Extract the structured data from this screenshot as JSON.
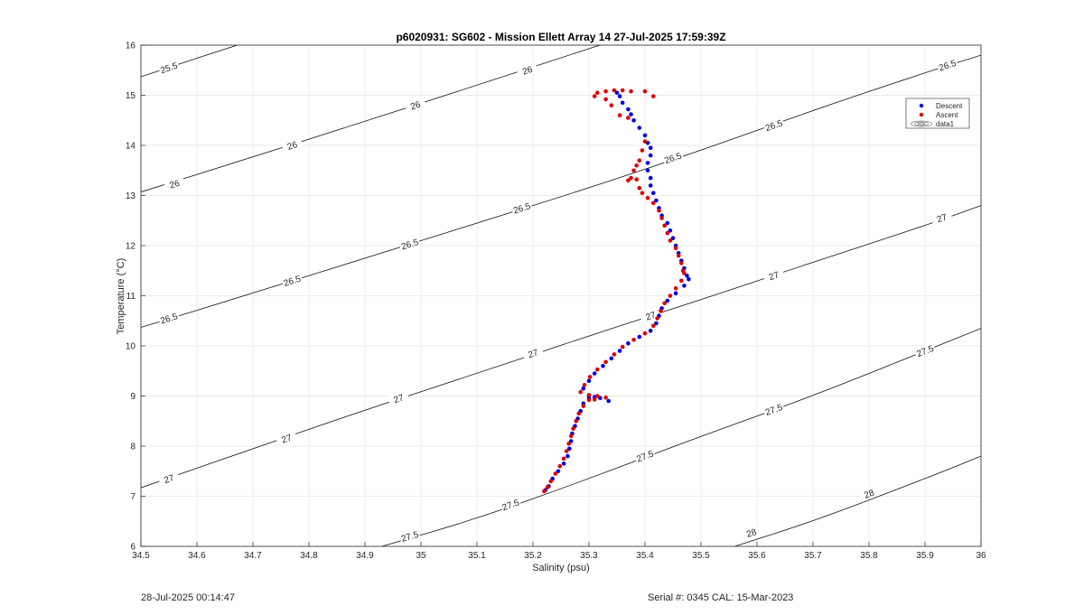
{
  "chart_data": {
    "type": "scatter",
    "title": "p6020931: SG602 - Mission Ellett Array 14 27-Jul-2025 17:59:39Z",
    "xlabel": "Salinity (psu)",
    "ylabel": "Temperature (°C)",
    "xlim": [
      34.5,
      36
    ],
    "ylim": [
      6,
      16
    ],
    "x_ticks": [
      "34.5",
      "34.6",
      "34.7",
      "34.8",
      "34.9",
      "35",
      "35.1",
      "35.2",
      "35.3",
      "35.4",
      "35.5",
      "35.6",
      "35.7",
      "35.8",
      "35.9",
      "36"
    ],
    "y_ticks": [
      "6",
      "7",
      "8",
      "9",
      "10",
      "11",
      "12",
      "13",
      "14",
      "15",
      "16"
    ],
    "grid": true,
    "legend_placement": "top-right",
    "legend": [
      "Descent",
      "Ascent",
      "data1"
    ],
    "contours": [
      {
        "label": "25.5",
        "points": [
          [
            34.5,
            15.37
          ],
          [
            34.6,
            15.74
          ],
          [
            34.7,
            16.1
          ]
        ]
      },
      {
        "label": "26",
        "points": [
          [
            34.5,
            13.07
          ],
          [
            34.7,
            13.77
          ],
          [
            34.9,
            14.48
          ],
          [
            35.1,
            15.2
          ],
          [
            35.3,
            15.93
          ],
          [
            35.32,
            16.0
          ]
        ]
      },
      {
        "label": "26.5",
        "points": [
          [
            34.5,
            10.37
          ],
          [
            34.7,
            11.05
          ],
          [
            34.9,
            11.75
          ],
          [
            35.1,
            12.45
          ],
          [
            35.3,
            13.15
          ],
          [
            35.5,
            13.9
          ],
          [
            35.7,
            14.7
          ],
          [
            35.9,
            15.45
          ],
          [
            36,
            15.8
          ]
        ]
      },
      {
        "label": "27",
        "points": [
          [
            34.5,
            7.17
          ],
          [
            34.7,
            7.95
          ],
          [
            34.9,
            8.72
          ],
          [
            35.1,
            9.45
          ],
          [
            35.3,
            10.2
          ],
          [
            35.5,
            10.92
          ],
          [
            35.7,
            11.67
          ],
          [
            35.9,
            12.4
          ],
          [
            36,
            12.8
          ]
        ]
      },
      {
        "label": "27.5",
        "points": [
          [
            34.93,
            6.0
          ],
          [
            35.1,
            6.55
          ],
          [
            35.3,
            7.35
          ],
          [
            35.5,
            8.2
          ],
          [
            35.7,
            9.0
          ],
          [
            35.9,
            9.9
          ],
          [
            36,
            10.35
          ]
        ]
      },
      {
        "label": "28",
        "points": [
          [
            35.56,
            6.0
          ],
          [
            35.7,
            6.5
          ],
          [
            35.9,
            7.35
          ],
          [
            36,
            7.8
          ]
        ]
      }
    ],
    "contour_labels": [
      {
        "label": "25.5",
        "x": 34.55,
        "y": 15.55
      },
      {
        "label": "26",
        "x": 35.19,
        "y": 15.5
      },
      {
        "label": "26",
        "x": 34.99,
        "y": 14.8
      },
      {
        "label": "26",
        "x": 34.77,
        "y": 14.0
      },
      {
        "label": "26",
        "x": 34.56,
        "y": 13.23
      },
      {
        "label": "26.5",
        "x": 35.94,
        "y": 15.6
      },
      {
        "label": "26.5",
        "x": 35.63,
        "y": 14.4
      },
      {
        "label": "26.5",
        "x": 35.45,
        "y": 13.75
      },
      {
        "label": "26.5",
        "x": 35.18,
        "y": 12.75
      },
      {
        "label": "26.5",
        "x": 34.98,
        "y": 12.03
      },
      {
        "label": "26.5",
        "x": 34.77,
        "y": 11.3
      },
      {
        "label": "26.5",
        "x": 34.55,
        "y": 10.55
      },
      {
        "label": "27",
        "x": 35.93,
        "y": 12.55
      },
      {
        "label": "27",
        "x": 35.63,
        "y": 11.4
      },
      {
        "label": "27",
        "x": 35.41,
        "y": 10.6
      },
      {
        "label": "27",
        "x": 35.2,
        "y": 9.85
      },
      {
        "label": "27",
        "x": 34.96,
        "y": 8.95
      },
      {
        "label": "27",
        "x": 34.76,
        "y": 8.15
      },
      {
        "label": "27",
        "x": 34.55,
        "y": 7.35
      },
      {
        "label": "27.5",
        "x": 35.9,
        "y": 9.9
      },
      {
        "label": "27.5",
        "x": 35.63,
        "y": 8.73
      },
      {
        "label": "27.5",
        "x": 35.4,
        "y": 7.8
      },
      {
        "label": "27.5",
        "x": 35.16,
        "y": 6.83
      },
      {
        "label": "27.5",
        "x": 34.98,
        "y": 6.2
      },
      {
        "label": "28",
        "x": 35.8,
        "y": 7.05
      },
      {
        "label": "28",
        "x": 35.59,
        "y": 6.27
      }
    ],
    "series": [
      {
        "name": "Descent",
        "color": "#0000dd",
        "points": [
          [
            35.35,
            15.05
          ],
          [
            35.355,
            14.98
          ],
          [
            35.36,
            14.85
          ],
          [
            35.37,
            14.72
          ],
          [
            35.375,
            14.62
          ],
          [
            35.38,
            14.5
          ],
          [
            35.39,
            14.35
          ],
          [
            35.4,
            14.2
          ],
          [
            35.405,
            14.05
          ],
          [
            35.41,
            13.95
          ],
          [
            35.41,
            13.8
          ],
          [
            35.405,
            13.65
          ],
          [
            35.405,
            13.5
          ],
          [
            35.41,
            13.35
          ],
          [
            35.41,
            13.2
          ],
          [
            35.415,
            13.05
          ],
          [
            35.42,
            12.9
          ],
          [
            35.425,
            12.75
          ],
          [
            35.43,
            12.6
          ],
          [
            35.44,
            12.45
          ],
          [
            35.445,
            12.3
          ],
          [
            35.45,
            12.15
          ],
          [
            35.455,
            12.0
          ],
          [
            35.46,
            11.85
          ],
          [
            35.465,
            11.7
          ],
          [
            35.47,
            11.55
          ],
          [
            35.475,
            11.4
          ],
          [
            35.478,
            11.33
          ],
          [
            35.47,
            11.2
          ],
          [
            35.455,
            11.05
          ],
          [
            35.44,
            10.9
          ],
          [
            35.43,
            10.75
          ],
          [
            35.425,
            10.6
          ],
          [
            35.42,
            10.45
          ],
          [
            35.41,
            10.3
          ],
          [
            35.39,
            10.18
          ],
          [
            35.37,
            10.05
          ],
          [
            35.355,
            9.9
          ],
          [
            35.34,
            9.75
          ],
          [
            35.325,
            9.6
          ],
          [
            35.31,
            9.45
          ],
          [
            35.3,
            9.3
          ],
          [
            35.29,
            9.15
          ],
          [
            35.3,
            9.0
          ],
          [
            35.31,
            8.98
          ],
          [
            35.32,
            8.96
          ],
          [
            35.335,
            8.9
          ],
          [
            35.3,
            8.95
          ],
          [
            35.29,
            8.85
          ],
          [
            35.285,
            8.7
          ],
          [
            35.28,
            8.55
          ],
          [
            35.275,
            8.4
          ],
          [
            35.27,
            8.25
          ],
          [
            35.268,
            8.1
          ],
          [
            35.265,
            7.95
          ],
          [
            35.262,
            7.8
          ],
          [
            35.255,
            7.65
          ],
          [
            35.245,
            7.5
          ],
          [
            35.235,
            7.35
          ],
          [
            35.228,
            7.2
          ],
          [
            35.222,
            7.12
          ]
        ]
      },
      {
        "name": "Ascent",
        "color": "#dd0000",
        "points": [
          [
            35.31,
            14.98
          ],
          [
            35.315,
            15.05
          ],
          [
            35.33,
            15.08
          ],
          [
            35.345,
            15.1
          ],
          [
            35.36,
            15.1
          ],
          [
            35.375,
            15.08
          ],
          [
            35.4,
            15.08
          ],
          [
            35.415,
            14.98
          ],
          [
            35.33,
            14.92
          ],
          [
            35.34,
            14.8
          ],
          [
            35.355,
            14.6
          ],
          [
            35.37,
            14.55
          ],
          [
            35.4,
            14.08
          ],
          [
            35.395,
            13.9
          ],
          [
            35.39,
            13.7
          ],
          [
            35.385,
            13.6
          ],
          [
            35.38,
            13.5
          ],
          [
            35.375,
            13.35
          ],
          [
            35.37,
            13.3
          ],
          [
            35.385,
            13.32
          ],
          [
            35.39,
            13.15
          ],
          [
            35.395,
            13.05
          ],
          [
            35.405,
            12.95
          ],
          [
            35.415,
            12.85
          ],
          [
            35.425,
            12.7
          ],
          [
            35.43,
            12.55
          ],
          [
            35.435,
            12.4
          ],
          [
            35.44,
            12.25
          ],
          [
            35.445,
            12.1
          ],
          [
            35.455,
            11.95
          ],
          [
            35.46,
            11.8
          ],
          [
            35.465,
            11.65
          ],
          [
            35.468,
            11.5
          ],
          [
            35.47,
            11.45
          ],
          [
            35.465,
            11.3
          ],
          [
            35.455,
            11.15
          ],
          [
            35.445,
            11.0
          ],
          [
            35.435,
            10.85
          ],
          [
            35.428,
            10.7
          ],
          [
            35.422,
            10.55
          ],
          [
            35.415,
            10.4
          ],
          [
            35.4,
            10.25
          ],
          [
            35.38,
            10.12
          ],
          [
            35.36,
            9.98
          ],
          [
            35.345,
            9.83
          ],
          [
            35.33,
            9.68
          ],
          [
            35.315,
            9.53
          ],
          [
            35.302,
            9.38
          ],
          [
            35.292,
            9.22
          ],
          [
            35.285,
            9.08
          ],
          [
            35.3,
            9.02
          ],
          [
            35.315,
            9.0
          ],
          [
            35.33,
            8.97
          ],
          [
            35.31,
            8.93
          ],
          [
            35.3,
            8.92
          ],
          [
            35.29,
            8.8
          ],
          [
            35.282,
            8.65
          ],
          [
            35.277,
            8.5
          ],
          [
            35.272,
            8.35
          ],
          [
            35.268,
            8.2
          ],
          [
            35.264,
            8.05
          ],
          [
            35.26,
            7.9
          ],
          [
            35.255,
            7.75
          ],
          [
            35.248,
            7.6
          ],
          [
            35.24,
            7.45
          ],
          [
            35.232,
            7.3
          ],
          [
            35.226,
            7.18
          ],
          [
            35.22,
            7.1
          ]
        ]
      }
    ]
  },
  "footer": {
    "timestamp": "28-Jul-2025 00:14:47",
    "serial": "Serial #: 0345  CAL: 15-Mar-2023"
  }
}
